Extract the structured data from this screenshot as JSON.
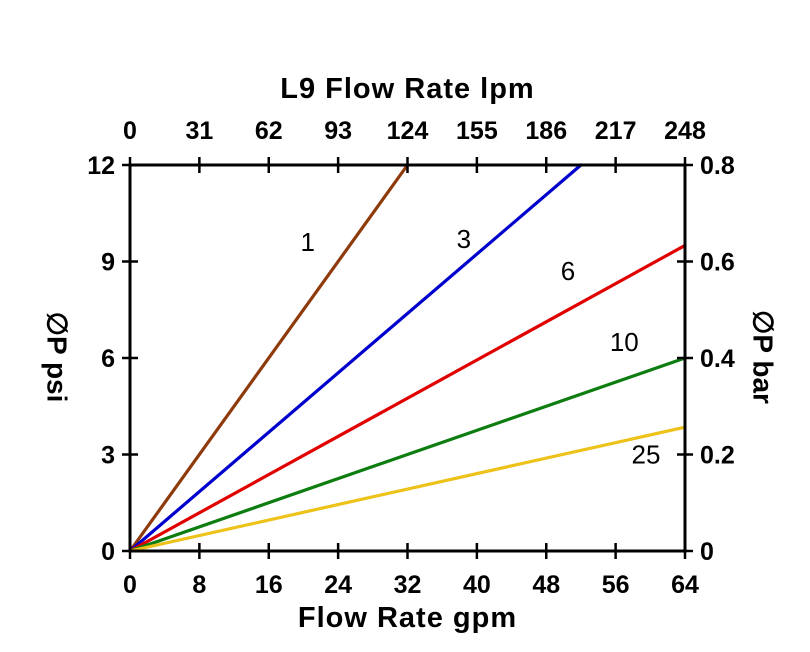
{
  "title": "L9 Flow Rate lpm",
  "chart_data": {
    "type": "line",
    "title": "L9 Flow Rate lpm",
    "grid": false,
    "legend": "inline-labels",
    "x_bottom": {
      "label": "Flow Rate gpm",
      "ticks": [
        0,
        8,
        16,
        24,
        32,
        40,
        48,
        56,
        64
      ],
      "range": [
        0,
        64
      ]
    },
    "x_top": {
      "label": "L9 Flow Rate lpm",
      "ticks": [
        0,
        31,
        62,
        93,
        124,
        155,
        186,
        217,
        248
      ],
      "range": [
        0,
        248
      ]
    },
    "y_left": {
      "label": "∅P psi",
      "ticks": [
        0,
        3,
        6,
        9,
        12
      ],
      "range": [
        0,
        12
      ]
    },
    "y_right": {
      "label": "∅P bar",
      "ticks": [
        0,
        0.2,
        0.4,
        0.6,
        0.8
      ],
      "range": [
        0,
        0.8
      ]
    },
    "series": [
      {
        "name": "1",
        "color": "#8e3a0b",
        "points": [
          [
            0,
            0
          ],
          [
            32,
            12
          ]
        ],
        "label_at": [
          20.5,
          9.6
        ]
      },
      {
        "name": "3",
        "color": "#0000cc",
        "points": [
          [
            0,
            0
          ],
          [
            52,
            12
          ]
        ],
        "label_at": [
          38.5,
          9.7
        ]
      },
      {
        "name": "6",
        "color": "#e10000",
        "points": [
          [
            0,
            0
          ],
          [
            64,
            9.5
          ]
        ],
        "label_at": [
          50.5,
          8.7
        ]
      },
      {
        "name": "10",
        "color": "#0d7d10",
        "points": [
          [
            0,
            0
          ],
          [
            64,
            6.0
          ]
        ],
        "label_at": [
          57.0,
          6.5
        ]
      },
      {
        "name": "25",
        "color": "#edc21a",
        "points": [
          [
            0,
            0
          ],
          [
            64,
            3.85
          ]
        ],
        "label_at": [
          59.5,
          3.0
        ]
      }
    ]
  }
}
